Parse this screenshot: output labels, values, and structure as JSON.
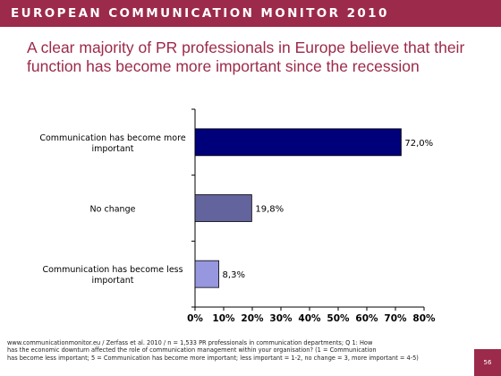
{
  "header": {
    "banner_title": "EUROPEAN COMMUNICATION MONITOR 2010",
    "headline": "A clear majority of PR professionals in Europe believe that their function has become more important since the recession"
  },
  "colors": {
    "brand": "#9c2a4a",
    "bar_series": [
      "#00007a",
      "#63639e",
      "#9797e0"
    ]
  },
  "chart_data": {
    "type": "bar",
    "orientation": "horizontal",
    "categories": [
      [
        "Communication has become more",
        "important"
      ],
      [
        "No change"
      ],
      [
        "Communication has become less",
        "important"
      ]
    ],
    "values": [
      72.0,
      19.8,
      8.3
    ],
    "value_labels": [
      "72,0%",
      "19,8%",
      "8,3%"
    ],
    "xlim": [
      0,
      80
    ],
    "xticks": [
      0,
      10,
      20,
      30,
      40,
      50,
      60,
      70,
      80
    ],
    "xtick_labels": [
      "0%",
      "10%",
      "20%",
      "30%",
      "40%",
      "50%",
      "60%",
      "70%",
      "80%"
    ],
    "grid": false
  },
  "footer": {
    "source_line_1": "www.communicationmonitor.eu / Zerfass et al. 2010 / n = 1,533 PR professionals in communication departments; Q 1: How",
    "source_line_2": "has the economic downturn affected the role of communication management within your organisation? (1 = Communication",
    "source_line_3": "has become less important; 5 = Communication has become more important; less important = 1-2, no change = 3, more important = 4-5)",
    "page_number": "56"
  }
}
